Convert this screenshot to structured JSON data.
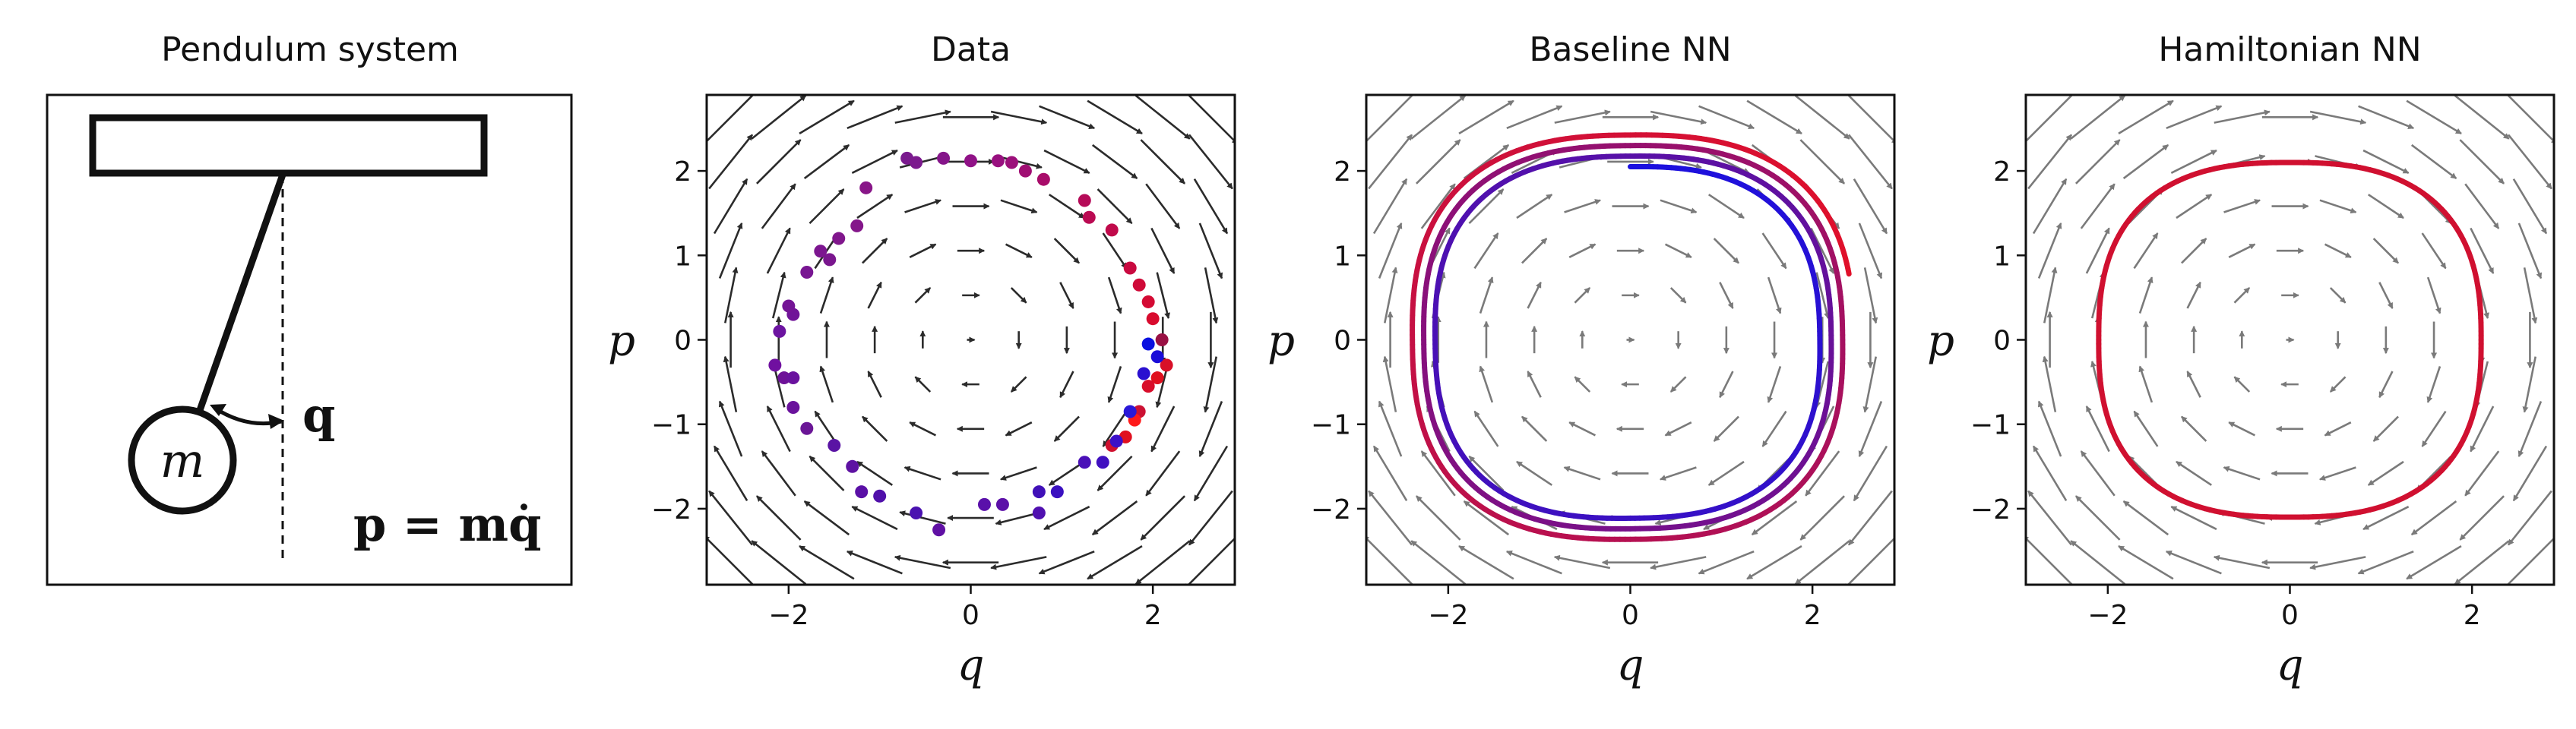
{
  "figure": {
    "panel1_title": "Pendulum system",
    "mass_label": "m",
    "q_label": "q",
    "p_equation": "p = mq̇"
  },
  "chart_data": [
    {
      "type": "scatter",
      "title": "Data",
      "xlabel": "q",
      "ylabel": "p",
      "xlim": [
        -2.9,
        2.9
      ],
      "ylim": [
        -2.9,
        2.9
      ],
      "xticks": [
        -2,
        0,
        2
      ],
      "yticks": [
        -2,
        -1,
        0,
        1,
        2
      ],
      "vector_field": "pendulum",
      "arrow_color": "#2b2b2b",
      "points": [
        {
          "x": -0.7,
          "y": 2.15,
          "c": "#7a1a8e"
        },
        {
          "x": -0.3,
          "y": 2.15,
          "c": "#85158a"
        },
        {
          "x": 0.0,
          "y": 2.12,
          "c": "#901287"
        },
        {
          "x": 0.3,
          "y": 2.12,
          "c": "#98107f"
        },
        {
          "x": 0.45,
          "y": 2.1,
          "c": "#9c0f7a"
        },
        {
          "x": 0.6,
          "y": 2.0,
          "c": "#a00e73"
        },
        {
          "x": 0.8,
          "y": 1.9,
          "c": "#a80c6a"
        },
        {
          "x": -0.6,
          "y": 2.1,
          "c": "#7c1a8e"
        },
        {
          "x": 1.25,
          "y": 1.65,
          "c": "#b50b58"
        },
        {
          "x": 1.3,
          "y": 1.45,
          "c": "#ba0a52"
        },
        {
          "x": 1.55,
          "y": 1.3,
          "c": "#c00a4b"
        },
        {
          "x": 1.75,
          "y": 0.85,
          "c": "#c90a40"
        },
        {
          "x": 1.85,
          "y": 0.65,
          "c": "#cf0a38"
        },
        {
          "x": 1.95,
          "y": 0.45,
          "c": "#d40a33"
        },
        {
          "x": 2.0,
          "y": 0.25,
          "c": "#d80b2e"
        },
        {
          "x": 2.1,
          "y": 0.0,
          "c": "#991144"
        },
        {
          "x": 2.15,
          "y": -0.3,
          "c": "#d81028"
        },
        {
          "x": 2.05,
          "y": -0.45,
          "c": "#e0101f"
        },
        {
          "x": 1.95,
          "y": -0.55,
          "c": "#d80d2a"
        },
        {
          "x": 1.85,
          "y": -0.85,
          "c": "#cc1133"
        },
        {
          "x": 1.8,
          "y": -0.95,
          "c": "#ff1a1a"
        },
        {
          "x": 1.7,
          "y": -1.15,
          "c": "#e01020"
        },
        {
          "x": 1.55,
          "y": -1.25,
          "c": "#d0102f"
        },
        {
          "x": 1.95,
          "y": -0.05,
          "c": "#0a10e0"
        },
        {
          "x": 2.05,
          "y": -0.2,
          "c": "#1a0dd8"
        },
        {
          "x": 1.9,
          "y": -0.4,
          "c": "#2a10d0"
        },
        {
          "x": 1.75,
          "y": -0.85,
          "c": "#2a18d8"
        },
        {
          "x": 1.6,
          "y": -1.2,
          "c": "#3c10c8"
        },
        {
          "x": 1.45,
          "y": -1.45,
          "c": "#4010c0"
        },
        {
          "x": 1.25,
          "y": -1.45,
          "c": "#4a10b8"
        },
        {
          "x": 0.95,
          "y": -1.8,
          "c": "#3a10c0"
        },
        {
          "x": 0.75,
          "y": -1.8,
          "c": "#4010b8"
        },
        {
          "x": 0.75,
          "y": -2.05,
          "c": "#5010b0"
        },
        {
          "x": 0.35,
          "y": -1.95,
          "c": "#5c10a8"
        },
        {
          "x": 0.15,
          "y": -1.95,
          "c": "#5a10aa"
        },
        {
          "x": -0.35,
          "y": -2.25,
          "c": "#6010a4"
        },
        {
          "x": -0.6,
          "y": -2.05,
          "c": "#4a12b0"
        },
        {
          "x": -1.0,
          "y": -1.85,
          "c": "#5010aa"
        },
        {
          "x": -1.2,
          "y": -1.8,
          "c": "#5a10a6"
        },
        {
          "x": -1.3,
          "y": -1.5,
          "c": "#5e12a2"
        },
        {
          "x": -1.5,
          "y": -1.25,
          "c": "#5a14a4"
        },
        {
          "x": -1.8,
          "y": -1.05,
          "c": "#6a1696"
        },
        {
          "x": -1.95,
          "y": -0.8,
          "c": "#6a129c"
        },
        {
          "x": -2.05,
          "y": -0.45,
          "c": "#6e1298"
        },
        {
          "x": -1.95,
          "y": -0.45,
          "c": "#6a129e"
        },
        {
          "x": -2.15,
          "y": -0.3,
          "c": "#7010a0"
        },
        {
          "x": -2.1,
          "y": 0.1,
          "c": "#6c14a0"
        },
        {
          "x": -1.95,
          "y": 0.3,
          "c": "#701498"
        },
        {
          "x": -2.0,
          "y": 0.4,
          "c": "#741496"
        },
        {
          "x": -1.8,
          "y": 0.8,
          "c": "#781692"
        },
        {
          "x": -1.65,
          "y": 1.05,
          "c": "#7c1690"
        },
        {
          "x": -1.55,
          "y": 0.95,
          "c": "#7a168e"
        },
        {
          "x": -1.45,
          "y": 1.2,
          "c": "#80168c"
        },
        {
          "x": -1.25,
          "y": 1.35,
          "c": "#84168a"
        },
        {
          "x": -1.15,
          "y": 1.8,
          "c": "#881688"
        }
      ]
    },
    {
      "type": "line",
      "title": "Baseline NN",
      "xlabel": "q",
      "ylabel": "p",
      "xlim": [
        -2.9,
        2.9
      ],
      "ylim": [
        -2.9,
        2.9
      ],
      "xticks": [
        -2,
        0,
        2
      ],
      "yticks": [
        -2,
        -1,
        0,
        1,
        2
      ],
      "vector_field": "pendulum",
      "arrow_color": "#7a7a7a",
      "trajectory": {
        "r0": 2.05,
        "r1": 2.45,
        "exponent": 2.6,
        "turns": 3.2,
        "color_start": "#1a10e0",
        "color_end": "#e0102a"
      }
    },
    {
      "type": "line",
      "title": "Hamiltonian NN",
      "xlabel": "q",
      "ylabel": "p",
      "xlim": [
        -2.9,
        2.9
      ],
      "ylim": [
        -2.9,
        2.9
      ],
      "xticks": [
        -2,
        0,
        2
      ],
      "yticks": [
        -2,
        -1,
        0,
        1,
        2
      ],
      "vector_field": "pendulum",
      "arrow_color": "#7a7a7a",
      "trajectory": {
        "r0": 2.1,
        "r1": 2.1,
        "exponent": 2.6,
        "turns": 1,
        "color_start": "#d01030",
        "color_end": "#d01030"
      }
    }
  ]
}
